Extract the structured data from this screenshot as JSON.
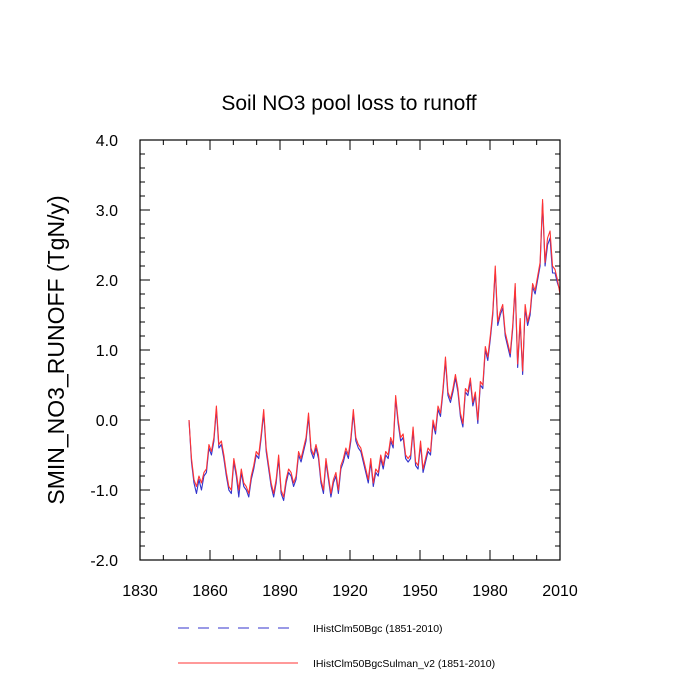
{
  "chart_data": {
    "type": "line",
    "title": "Soil NO3 pool loss to runoff",
    "xlabel": "",
    "ylabel": "SMIN_NO3_RUNOFF  (TgN/y)",
    "xlim": [
      1830,
      2010
    ],
    "ylim": [
      -2.0,
      4.0
    ],
    "x_ticks": [
      "1830",
      "1860",
      "1890",
      "1920",
      "1950",
      "1980",
      "2010"
    ],
    "y_ticks": [
      "-2.0",
      "-1.0",
      "0.0",
      "1.0",
      "2.0",
      "3.0",
      "4.0"
    ],
    "x_start": 1851,
    "x_end": 2010,
    "grid": false,
    "legend_position": "bottom",
    "series": [
      {
        "name": "IHistClm50Bgc (1851-2010)",
        "color": "#3333cc",
        "style": "dashed",
        "values": [
          0.0,
          -0.6,
          -0.9,
          -1.05,
          -0.85,
          -1.0,
          -0.8,
          -0.75,
          -0.4,
          -0.5,
          -0.3,
          0.15,
          -0.4,
          -0.35,
          -0.55,
          -0.8,
          -1.0,
          -1.05,
          -0.6,
          -0.8,
          -1.1,
          -0.75,
          -0.95,
          -1.0,
          -1.1,
          -0.85,
          -0.7,
          -0.5,
          -0.55,
          -0.25,
          0.1,
          -0.45,
          -0.7,
          -0.95,
          -1.1,
          -0.9,
          -0.55,
          -1.05,
          -1.15,
          -0.9,
          -0.75,
          -0.8,
          -0.95,
          -0.85,
          -0.5,
          -0.6,
          -0.45,
          -0.3,
          0.05,
          -0.45,
          -0.55,
          -0.4,
          -0.55,
          -0.9,
          -1.05,
          -0.6,
          -0.85,
          -1.1,
          -0.9,
          -0.8,
          -1.05,
          -0.7,
          -0.6,
          -0.45,
          -0.55,
          -0.3,
          0.1,
          -0.3,
          -0.4,
          -0.45,
          -0.6,
          -0.75,
          -0.9,
          -0.6,
          -0.95,
          -0.75,
          -0.8,
          -0.55,
          -0.7,
          -0.5,
          -0.55,
          -0.3,
          -0.4,
          0.3,
          -0.05,
          -0.3,
          -0.25,
          -0.55,
          -0.6,
          -0.55,
          -0.15,
          -0.65,
          -0.7,
          -0.35,
          -0.75,
          -0.6,
          -0.45,
          -0.5,
          -0.05,
          -0.2,
          0.15,
          0.05,
          0.4,
          0.85,
          0.35,
          0.25,
          0.4,
          0.6,
          0.4,
          0.05,
          -0.1,
          0.4,
          0.35,
          0.55,
          0.2,
          0.35,
          -0.05,
          0.5,
          0.45,
          1.0,
          0.85,
          1.15,
          1.5,
          2.15,
          1.35,
          1.5,
          1.6,
          1.2,
          1.05,
          0.9,
          1.3,
          1.9,
          0.75,
          1.4,
          0.65,
          1.6,
          1.35,
          1.5,
          1.9,
          1.8,
          2.0,
          2.2,
          3.1,
          2.2,
          2.5,
          2.6,
          2.1,
          2.1,
          1.95,
          1.85
        ]
      },
      {
        "name": "IHistClm50BgcSulman_v2 (1851-2010)",
        "color": "#ff3333",
        "style": "solid",
        "values": [
          0.0,
          -0.55,
          -0.85,
          -0.95,
          -0.8,
          -0.9,
          -0.75,
          -0.7,
          -0.35,
          -0.45,
          -0.25,
          0.2,
          -0.35,
          -0.3,
          -0.5,
          -0.75,
          -0.95,
          -1.0,
          -0.55,
          -0.75,
          -1.0,
          -0.7,
          -0.9,
          -0.95,
          -1.05,
          -0.8,
          -0.65,
          -0.45,
          -0.5,
          -0.2,
          0.15,
          -0.4,
          -0.65,
          -0.9,
          -1.05,
          -0.85,
          -0.5,
          -1.0,
          -1.1,
          -0.85,
          -0.7,
          -0.75,
          -0.9,
          -0.8,
          -0.45,
          -0.55,
          -0.4,
          -0.25,
          0.1,
          -0.4,
          -0.5,
          -0.35,
          -0.5,
          -0.85,
          -1.0,
          -0.55,
          -0.8,
          -1.05,
          -0.85,
          -0.75,
          -1.0,
          -0.65,
          -0.55,
          -0.4,
          -0.5,
          -0.25,
          0.15,
          -0.25,
          -0.35,
          -0.4,
          -0.55,
          -0.7,
          -0.85,
          -0.55,
          -0.9,
          -0.7,
          -0.75,
          -0.5,
          -0.65,
          -0.45,
          -0.5,
          -0.25,
          -0.35,
          0.35,
          0.0,
          -0.25,
          -0.2,
          -0.5,
          -0.55,
          -0.5,
          -0.1,
          -0.6,
          -0.65,
          -0.3,
          -0.7,
          -0.55,
          -0.4,
          -0.45,
          0.0,
          -0.15,
          0.2,
          0.1,
          0.45,
          0.9,
          0.4,
          0.3,
          0.45,
          0.65,
          0.45,
          0.1,
          -0.05,
          0.45,
          0.4,
          0.6,
          0.25,
          0.4,
          0.0,
          0.55,
          0.5,
          1.05,
          0.9,
          1.2,
          1.55,
          2.2,
          1.4,
          1.55,
          1.65,
          1.25,
          1.1,
          0.95,
          1.35,
          1.95,
          0.8,
          1.45,
          0.7,
          1.65,
          1.4,
          1.55,
          1.95,
          1.85,
          2.05,
          2.25,
          3.15,
          2.25,
          2.6,
          2.7,
          2.2,
          2.15,
          2.0,
          1.8
        ]
      }
    ]
  }
}
